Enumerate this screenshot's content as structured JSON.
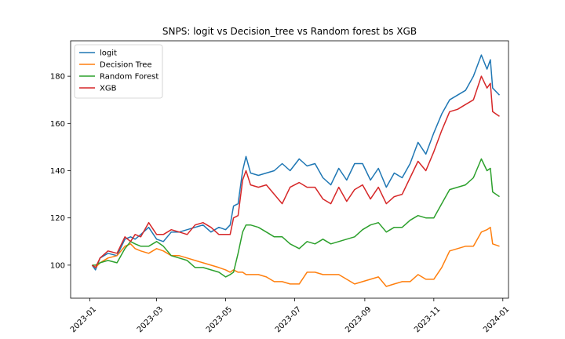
{
  "chart_data": {
    "type": "line",
    "title": "SNPS: logit vs Decision_tree vs Random forest bs XGB",
    "xlabel": "",
    "ylabel": "",
    "x_axis_type": "date",
    "xlim": [
      "2022-12-15",
      "2024-01-06"
    ],
    "ylim": [
      86,
      195
    ],
    "grid": false,
    "legend_position": "top-left",
    "x_ticks": [
      "2023-01",
      "2023-03",
      "2023-05",
      "2023-07",
      "2023-09",
      "2023-11",
      "2024-01"
    ],
    "y_ticks": [
      100,
      120,
      140,
      160,
      180
    ],
    "series": [
      {
        "name": "logit",
        "color": "#1f77b4",
        "points": [
          [
            "2023-01-03",
            100
          ],
          [
            "2023-01-06",
            98
          ],
          [
            "2023-01-10",
            103
          ],
          [
            "2023-01-17",
            105
          ],
          [
            "2023-01-25",
            104
          ],
          [
            "2023-02-01",
            111
          ],
          [
            "2023-02-06",
            112
          ],
          [
            "2023-02-10",
            111
          ],
          [
            "2023-02-15",
            113
          ],
          [
            "2023-02-22",
            116
          ],
          [
            "2023-03-01",
            111
          ],
          [
            "2023-03-07",
            110
          ],
          [
            "2023-03-14",
            114
          ],
          [
            "2023-03-21",
            114
          ],
          [
            "2023-03-28",
            115
          ],
          [
            "2023-04-04",
            116
          ],
          [
            "2023-04-11",
            117
          ],
          [
            "2023-04-18",
            114
          ],
          [
            "2023-04-25",
            116
          ],
          [
            "2023-05-01",
            115
          ],
          [
            "2023-05-05",
            117
          ],
          [
            "2023-05-08",
            125
          ],
          [
            "2023-05-12",
            126
          ],
          [
            "2023-05-16",
            140
          ],
          [
            "2023-05-19",
            146
          ],
          [
            "2023-05-23",
            139
          ],
          [
            "2023-05-30",
            138
          ],
          [
            "2023-06-06",
            139
          ],
          [
            "2023-06-13",
            140
          ],
          [
            "2023-06-20",
            143
          ],
          [
            "2023-06-27",
            140
          ],
          [
            "2023-07-05",
            145
          ],
          [
            "2023-07-12",
            142
          ],
          [
            "2023-07-19",
            143
          ],
          [
            "2023-07-26",
            137
          ],
          [
            "2023-08-02",
            134
          ],
          [
            "2023-08-09",
            141
          ],
          [
            "2023-08-16",
            136
          ],
          [
            "2023-08-23",
            143
          ],
          [
            "2023-08-30",
            143
          ],
          [
            "2023-09-06",
            136
          ],
          [
            "2023-09-13",
            141
          ],
          [
            "2023-09-20",
            133
          ],
          [
            "2023-09-27",
            139
          ],
          [
            "2023-10-04",
            137
          ],
          [
            "2023-10-11",
            143
          ],
          [
            "2023-10-18",
            152
          ],
          [
            "2023-10-25",
            147
          ],
          [
            "2023-11-01",
            156
          ],
          [
            "2023-11-08",
            164
          ],
          [
            "2023-11-15",
            170
          ],
          [
            "2023-11-22",
            172
          ],
          [
            "2023-11-29",
            174
          ],
          [
            "2023-12-06",
            180
          ],
          [
            "2023-12-13",
            189
          ],
          [
            "2023-12-18",
            183
          ],
          [
            "2023-12-21",
            187
          ],
          [
            "2023-12-23",
            175
          ],
          [
            "2023-12-29",
            172
          ]
        ]
      },
      {
        "name": "Decision Tree",
        "color": "#ff7f0e",
        "points": [
          [
            "2023-01-03",
            100
          ],
          [
            "2023-01-06",
            99
          ],
          [
            "2023-01-10",
            101
          ],
          [
            "2023-01-17",
            103
          ],
          [
            "2023-01-25",
            104
          ],
          [
            "2023-02-01",
            108
          ],
          [
            "2023-02-06",
            109
          ],
          [
            "2023-02-10",
            107
          ],
          [
            "2023-02-15",
            106
          ],
          [
            "2023-02-22",
            105
          ],
          [
            "2023-03-01",
            107
          ],
          [
            "2023-03-07",
            106
          ],
          [
            "2023-03-14",
            104
          ],
          [
            "2023-03-21",
            104
          ],
          [
            "2023-03-28",
            103
          ],
          [
            "2023-04-04",
            102
          ],
          [
            "2023-04-11",
            101
          ],
          [
            "2023-04-18",
            100
          ],
          [
            "2023-04-25",
            99
          ],
          [
            "2023-05-01",
            98
          ],
          [
            "2023-05-05",
            97
          ],
          [
            "2023-05-08",
            98
          ],
          [
            "2023-05-12",
            97
          ],
          [
            "2023-05-16",
            97
          ],
          [
            "2023-05-19",
            96
          ],
          [
            "2023-05-23",
            96
          ],
          [
            "2023-05-30",
            96
          ],
          [
            "2023-06-06",
            95
          ],
          [
            "2023-06-13",
            93
          ],
          [
            "2023-06-20",
            93
          ],
          [
            "2023-06-27",
            92
          ],
          [
            "2023-07-05",
            92
          ],
          [
            "2023-07-12",
            97
          ],
          [
            "2023-07-19",
            97
          ],
          [
            "2023-07-26",
            96
          ],
          [
            "2023-08-02",
            96
          ],
          [
            "2023-08-09",
            96
          ],
          [
            "2023-08-16",
            94
          ],
          [
            "2023-08-23",
            92
          ],
          [
            "2023-08-30",
            93
          ],
          [
            "2023-09-06",
            94
          ],
          [
            "2023-09-13",
            95
          ],
          [
            "2023-09-20",
            91
          ],
          [
            "2023-09-27",
            92
          ],
          [
            "2023-10-04",
            93
          ],
          [
            "2023-10-11",
            93
          ],
          [
            "2023-10-18",
            96
          ],
          [
            "2023-10-25",
            94
          ],
          [
            "2023-11-01",
            94
          ],
          [
            "2023-11-08",
            99
          ],
          [
            "2023-11-15",
            106
          ],
          [
            "2023-11-22",
            107
          ],
          [
            "2023-11-29",
            108
          ],
          [
            "2023-12-06",
            108
          ],
          [
            "2023-12-13",
            114
          ],
          [
            "2023-12-18",
            115
          ],
          [
            "2023-12-21",
            116
          ],
          [
            "2023-12-23",
            109
          ],
          [
            "2023-12-29",
            108
          ]
        ]
      },
      {
        "name": "Random Forest",
        "color": "#2ca02c",
        "points": [
          [
            "2023-01-03",
            100
          ],
          [
            "2023-01-06",
            100
          ],
          [
            "2023-01-10",
            101
          ],
          [
            "2023-01-17",
            102
          ],
          [
            "2023-01-25",
            101
          ],
          [
            "2023-02-01",
            107
          ],
          [
            "2023-02-06",
            110
          ],
          [
            "2023-02-10",
            109
          ],
          [
            "2023-02-15",
            108
          ],
          [
            "2023-02-22",
            108
          ],
          [
            "2023-03-01",
            110
          ],
          [
            "2023-03-07",
            108
          ],
          [
            "2023-03-14",
            104
          ],
          [
            "2023-03-21",
            103
          ],
          [
            "2023-03-28",
            102
          ],
          [
            "2023-04-04",
            99
          ],
          [
            "2023-04-11",
            99
          ],
          [
            "2023-04-18",
            98
          ],
          [
            "2023-04-25",
            97
          ],
          [
            "2023-05-01",
            95
          ],
          [
            "2023-05-05",
            96
          ],
          [
            "2023-05-08",
            97
          ],
          [
            "2023-05-12",
            105
          ],
          [
            "2023-05-16",
            114
          ],
          [
            "2023-05-19",
            117
          ],
          [
            "2023-05-23",
            117
          ],
          [
            "2023-05-30",
            116
          ],
          [
            "2023-06-06",
            114
          ],
          [
            "2023-06-13",
            112
          ],
          [
            "2023-06-20",
            112
          ],
          [
            "2023-06-27",
            109
          ],
          [
            "2023-07-05",
            107
          ],
          [
            "2023-07-12",
            110
          ],
          [
            "2023-07-19",
            109
          ],
          [
            "2023-07-26",
            111
          ],
          [
            "2023-08-02",
            109
          ],
          [
            "2023-08-09",
            110
          ],
          [
            "2023-08-16",
            111
          ],
          [
            "2023-08-23",
            112
          ],
          [
            "2023-08-30",
            115
          ],
          [
            "2023-09-06",
            117
          ],
          [
            "2023-09-13",
            118
          ],
          [
            "2023-09-20",
            114
          ],
          [
            "2023-09-27",
            116
          ],
          [
            "2023-10-04",
            116
          ],
          [
            "2023-10-11",
            119
          ],
          [
            "2023-10-18",
            121
          ],
          [
            "2023-10-25",
            120
          ],
          [
            "2023-11-01",
            120
          ],
          [
            "2023-11-08",
            126
          ],
          [
            "2023-11-15",
            132
          ],
          [
            "2023-11-22",
            133
          ],
          [
            "2023-11-29",
            134
          ],
          [
            "2023-12-06",
            137
          ],
          [
            "2023-12-13",
            145
          ],
          [
            "2023-12-18",
            140
          ],
          [
            "2023-12-21",
            141
          ],
          [
            "2023-12-23",
            131
          ],
          [
            "2023-12-29",
            129
          ]
        ]
      },
      {
        "name": "XGB",
        "color": "#d62728",
        "points": [
          [
            "2023-01-03",
            100
          ],
          [
            "2023-01-06",
            99
          ],
          [
            "2023-01-10",
            103
          ],
          [
            "2023-01-17",
            106
          ],
          [
            "2023-01-25",
            105
          ],
          [
            "2023-02-01",
            112
          ],
          [
            "2023-02-06",
            110
          ],
          [
            "2023-02-10",
            113
          ],
          [
            "2023-02-15",
            112
          ],
          [
            "2023-02-22",
            118
          ],
          [
            "2023-03-01",
            113
          ],
          [
            "2023-03-07",
            113
          ],
          [
            "2023-03-14",
            115
          ],
          [
            "2023-03-21",
            114
          ],
          [
            "2023-03-28",
            113
          ],
          [
            "2023-04-04",
            117
          ],
          [
            "2023-04-11",
            118
          ],
          [
            "2023-04-18",
            116
          ],
          [
            "2023-04-25",
            113
          ],
          [
            "2023-05-01",
            113
          ],
          [
            "2023-05-05",
            113
          ],
          [
            "2023-05-08",
            120
          ],
          [
            "2023-05-12",
            121
          ],
          [
            "2023-05-16",
            136
          ],
          [
            "2023-05-19",
            140
          ],
          [
            "2023-05-23",
            134
          ],
          [
            "2023-05-30",
            133
          ],
          [
            "2023-06-06",
            134
          ],
          [
            "2023-06-13",
            130
          ],
          [
            "2023-06-20",
            126
          ],
          [
            "2023-06-27",
            133
          ],
          [
            "2023-07-05",
            135
          ],
          [
            "2023-07-12",
            133
          ],
          [
            "2023-07-19",
            133
          ],
          [
            "2023-07-26",
            128
          ],
          [
            "2023-08-02",
            126
          ],
          [
            "2023-08-09",
            133
          ],
          [
            "2023-08-16",
            127
          ],
          [
            "2023-08-23",
            132
          ],
          [
            "2023-08-30",
            134
          ],
          [
            "2023-09-06",
            128
          ],
          [
            "2023-09-13",
            133
          ],
          [
            "2023-09-20",
            126
          ],
          [
            "2023-09-27",
            129
          ],
          [
            "2023-10-04",
            130
          ],
          [
            "2023-10-11",
            137
          ],
          [
            "2023-10-18",
            144
          ],
          [
            "2023-10-25",
            140
          ],
          [
            "2023-11-01",
            148
          ],
          [
            "2023-11-08",
            157
          ],
          [
            "2023-11-15",
            165
          ],
          [
            "2023-11-22",
            166
          ],
          [
            "2023-11-29",
            168
          ],
          [
            "2023-12-06",
            170
          ],
          [
            "2023-12-13",
            180
          ],
          [
            "2023-12-18",
            175
          ],
          [
            "2023-12-21",
            177
          ],
          [
            "2023-12-23",
            165
          ],
          [
            "2023-12-29",
            163
          ]
        ]
      }
    ]
  }
}
